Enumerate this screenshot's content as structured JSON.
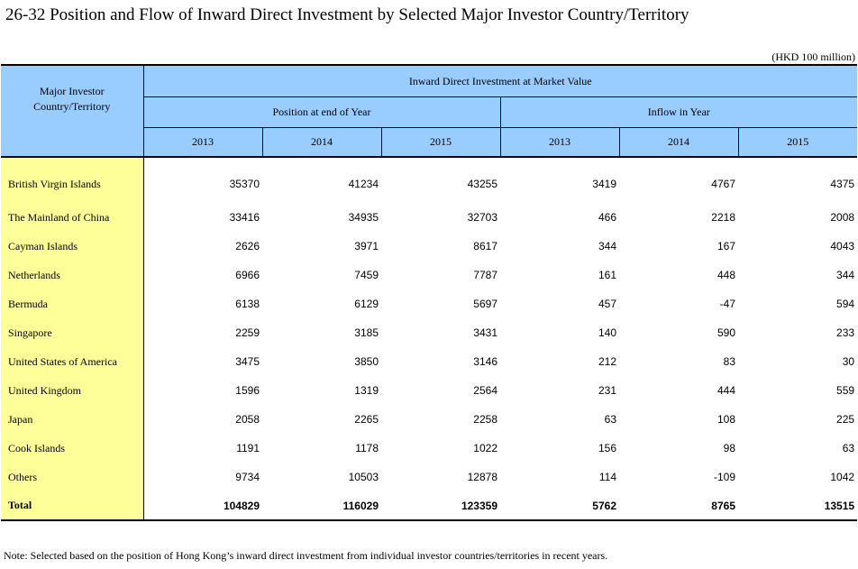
{
  "title": "26-32  Position and Flow of Inward Direct Investment by Selected Major Investor Country/Territory",
  "unit": "(HKD 100 million)",
  "header": {
    "corner": "Major Investor Country/Territory",
    "group": "Inward Direct Investment at Market Value",
    "position": "Position at end of Year",
    "inflow": "Inflow in Year",
    "years": [
      "2013",
      "2014",
      "2015",
      "2013",
      "2014",
      "2015"
    ]
  },
  "rows": [
    {
      "name": "British Virgin Islands",
      "values": [
        "35370",
        "41234",
        "43255",
        "3419",
        "4767",
        "4375"
      ]
    },
    {
      "name": "The Mainland of China",
      "values": [
        "33416",
        "34935",
        "32703",
        "466",
        "2218",
        "2008"
      ]
    },
    {
      "name": "Cayman Islands",
      "values": [
        "2626",
        "3971",
        "8617",
        "344",
        "167",
        "4043"
      ]
    },
    {
      "name": "Netherlands",
      "values": [
        "6966",
        "7459",
        "7787",
        "161",
        "448",
        "344"
      ]
    },
    {
      "name": "Bermuda",
      "values": [
        "6138",
        "6129",
        "5697",
        "457",
        "-47",
        "594"
      ]
    },
    {
      "name": "Singapore",
      "values": [
        "2259",
        "3185",
        "3431",
        "140",
        "590",
        "233"
      ]
    },
    {
      "name": "United States of America",
      "values": [
        "3475",
        "3850",
        "3146",
        "212",
        "83",
        "30"
      ]
    },
    {
      "name": "United Kingdom",
      "values": [
        "1596",
        "1319",
        "2564",
        "231",
        "444",
        "559"
      ]
    },
    {
      "name": "Japan",
      "values": [
        "2058",
        "2265",
        "2258",
        "63",
        "108",
        "225"
      ]
    },
    {
      "name": "Cook Islands",
      "values": [
        "1191",
        "1178",
        "1022",
        "156",
        "98",
        "63"
      ]
    },
    {
      "name": "Others",
      "values": [
        "9734",
        "10503",
        "12878",
        "114",
        "-109",
        "1042"
      ]
    }
  ],
  "total": {
    "name": "Total",
    "values": [
      "104829",
      "116029",
      "123359",
      "5762",
      "8765",
      "13515"
    ]
  },
  "note": "Note: Selected based on the position of Hong Kong’s inward direct investment from individual investor countries/territories in recent years."
}
